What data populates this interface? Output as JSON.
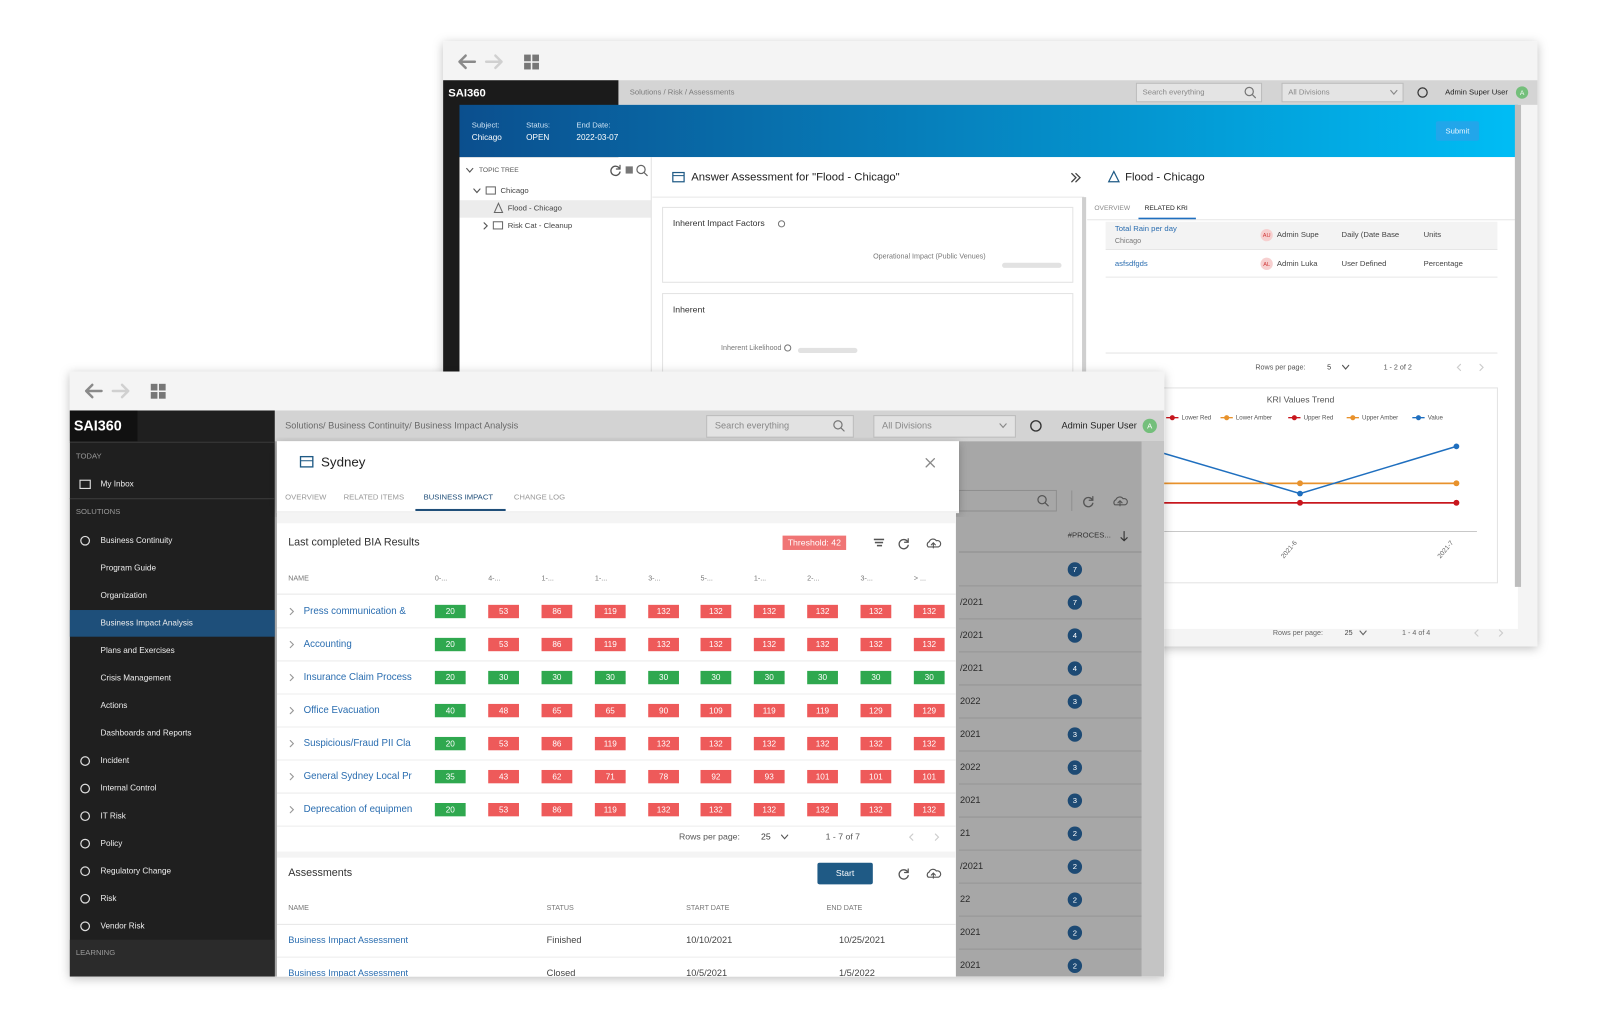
{
  "back": {
    "logo": "SAI360",
    "breadcrumb": "Solutions / Risk / Assessments",
    "search": "Search everything",
    "division": "All Divisions",
    "user": "Admin Super User",
    "user_initial": "A",
    "header_fields": [
      {
        "label": "Subject:",
        "value": "Chicago"
      },
      {
        "label": "Status:",
        "value": "OPEN"
      },
      {
        "label": "End Date:",
        "value": "2022-03-07"
      }
    ],
    "submit": "Submit",
    "topic_tree": {
      "title": "TOPIC TREE",
      "items": [
        "Chicago",
        "Flood - Chicago",
        "Risk Cat - Cleanup"
      ]
    },
    "answer": {
      "title": "Answer Assessment for \"Flood - Chicago\"",
      "sections": [
        {
          "title": "Inherent Impact Factors",
          "field": "Operational Impact (Public Venues)"
        },
        {
          "title": "Inherent",
          "field": "Inherent Likelihood"
        }
      ]
    },
    "detail": {
      "title": "Flood - Chicago",
      "tabs": [
        "OVERVIEW",
        "RELATED KRI"
      ],
      "rows": [
        {
          "name": "Total Rain per day",
          "sub": "Chicago",
          "initials": "AU",
          "owner": "Admin Supe",
          "frequency": "Daily (Date Base",
          "units": "Units"
        },
        {
          "name": "asfsdfgds",
          "initials": "AL",
          "owner": "Admin Luka",
          "frequency": "User Defined",
          "units": "Percentage"
        }
      ],
      "rows_per_page": "Rows per page:",
      "page_size": "5",
      "range": "1 - 2 of 2"
    },
    "trend": {
      "type": "line",
      "title": "KRI Values Trend",
      "x": [
        null,
        "2021-6",
        "2021-7"
      ],
      "series": [
        {
          "name": "Lower Red",
          "color": "#c8161d",
          "values": [
            30,
            30,
            30
          ]
        },
        {
          "name": "Lower Amber",
          "color": "#e8922c",
          "values": [
            49,
            49,
            49
          ]
        },
        {
          "name": "Upper Red",
          "color": "#c8161d",
          "values": [
            30,
            30,
            30
          ]
        },
        {
          "name": "Upper Amber",
          "color": "#e8922c",
          "values": [
            49,
            49,
            49
          ]
        },
        {
          "name": "Value",
          "color": "#1f6fbf",
          "values": [
            84,
            39,
            85
          ]
        }
      ]
    },
    "pagination": {
      "rows_per_page": "Rows per page:",
      "page_size": "25",
      "range": "1 - 4 of 4"
    }
  },
  "front": {
    "logo": "SAI360",
    "breadcrumb": "Solutions/ Business Continuity/ Business Impact Analysis",
    "search": "Search everything",
    "division": "All Divisions",
    "user": "Admin Super User",
    "user_initial": "A",
    "sidebar": {
      "today": "TODAY",
      "inbox": "My Inbox",
      "solutions": "SOLUTIONS",
      "items": [
        "Business Continuity",
        "Program Guide",
        "Organization",
        "Business Impact Analysis",
        "Plans and Exercises",
        "Crisis Management",
        "Actions",
        "Dashboards and Reports",
        "Incident",
        "Internal Control",
        "IT Risk",
        "Policy",
        "Regulatory Change",
        "Risk",
        "Vendor Risk"
      ],
      "active_index": 3,
      "learning": "LEARNING"
    },
    "list": {
      "header": "#PROCES...",
      "rows": [
        {
          "date": null,
          "count": 7
        },
        {
          "date": "/2021",
          "count": 7
        },
        {
          "date": "/2021",
          "count": 4
        },
        {
          "date": "/2021",
          "count": 4
        },
        {
          "date": "2022",
          "count": 3
        },
        {
          "date": "2021",
          "count": 3
        },
        {
          "date": "2022",
          "count": 3
        },
        {
          "date": "2021",
          "count": 3
        },
        {
          "date": "21",
          "count": 2
        },
        {
          "date": "/2021",
          "count": 2
        },
        {
          "date": "22",
          "count": 2
        },
        {
          "date": "2021",
          "count": 2
        },
        {
          "date": "2021",
          "count": 2
        }
      ]
    },
    "modal": {
      "title": "Sydney",
      "tabs": [
        "OVERVIEW",
        "RELATED ITEMS",
        "BUSINESS IMPACT",
        "CHANGE LOG"
      ],
      "active_tab": 2,
      "bia": {
        "title": "Last completed BIA Results",
        "threshold": 42,
        "threshold_label": "Threshold: 42",
        "columns": [
          "NAME",
          "0-...",
          "4-...",
          "1-...",
          "1-...",
          "3-...",
          "5-...",
          "1-...",
          "2-...",
          "3-...",
          "> ..."
        ],
        "rows": [
          {
            "name": "Press communication &",
            "values": [
              20,
              53,
              86,
              119,
              132,
              132,
              132,
              132,
              132,
              132
            ]
          },
          {
            "name": "Accounting",
            "values": [
              20,
              53,
              86,
              119,
              132,
              132,
              132,
              132,
              132,
              132
            ]
          },
          {
            "name": "Insurance Claim Process",
            "values": [
              20,
              30,
              30,
              30,
              30,
              30,
              30,
              30,
              30,
              30
            ]
          },
          {
            "name": "Office Evacuation",
            "values": [
              40,
              48,
              65,
              65,
              90,
              109,
              119,
              119,
              129,
              129
            ]
          },
          {
            "name": "Suspicious/Fraud PII Cla",
            "values": [
              20,
              53,
              86,
              119,
              132,
              132,
              132,
              132,
              132,
              132
            ]
          },
          {
            "name": "General Sydney Local Pr",
            "values": [
              35,
              43,
              62,
              71,
              78,
              92,
              93,
              101,
              101,
              101
            ]
          },
          {
            "name": "Deprecation of equipmen",
            "values": [
              20,
              53,
              86,
              119,
              132,
              132,
              132,
              132,
              132,
              132
            ]
          }
        ],
        "rows_per_page": "Rows per page:",
        "page_size": "25",
        "range": "1 - 7 of 7"
      },
      "assessments": {
        "title": "Assessments",
        "start": "Start",
        "columns": [
          "NAME",
          "STATUS",
          "START DATE",
          "END DATE"
        ],
        "rows": [
          [
            "Business Impact Assessment",
            "Finished",
            "10/10/2021",
            "10/25/2021"
          ],
          [
            "Business Impact Assessment",
            "Closed",
            "10/5/2021",
            "1/5/2022"
          ]
        ]
      }
    }
  }
}
